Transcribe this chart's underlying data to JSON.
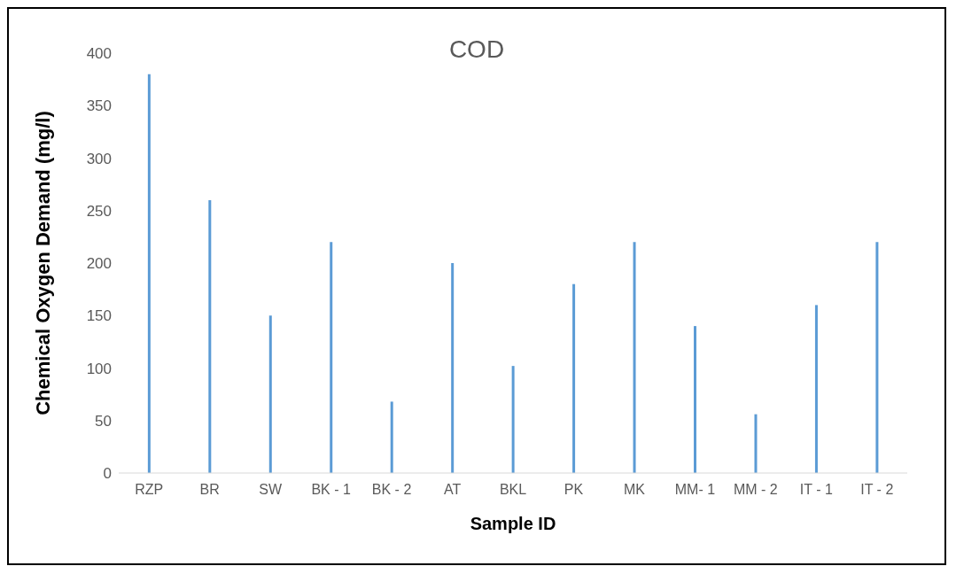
{
  "chart_data": {
    "type": "bar",
    "title": "COD",
    "xlabel": "Sample ID",
    "ylabel": "Chemical Oxygen Demand  (mg/l)",
    "categories": [
      "RZP",
      "BR",
      "SW",
      "BK - 1",
      "BK - 2",
      "AT",
      "BKL",
      "PK",
      "MK",
      "MM- 1",
      "MM - 2",
      "IT - 1",
      "IT - 2"
    ],
    "values": [
      380,
      260,
      150,
      220,
      68,
      200,
      102,
      180,
      220,
      140,
      56,
      160,
      220
    ],
    "color": "#5b9bd5",
    "ylim": [
      0,
      400
    ],
    "yticks": [
      0,
      50,
      100,
      150,
      200,
      250,
      300,
      350,
      400
    ],
    "grid": false,
    "legend": false
  }
}
